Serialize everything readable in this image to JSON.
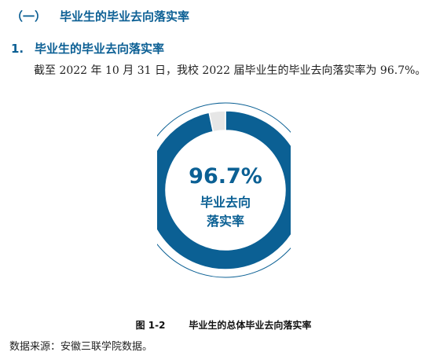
{
  "section": {
    "number": "（一）",
    "title": "毕业生的毕业去向落实率"
  },
  "subsection": {
    "number": "1.",
    "title": "毕业生的毕业去向落实率"
  },
  "paragraph": "截至 2022 年 10 月 31 日，我校 2022 届毕业生的毕业去向落实率为 96.7%。",
  "chart_data": {
    "type": "pie",
    "style": "donut",
    "categories": [
      "毕业去向落实率",
      ""
    ],
    "values": [
      96.7,
      3.3
    ],
    "colors": [
      "#0b6094",
      "#e6e6e6"
    ],
    "center_value": "96.7%",
    "center_label_lines": [
      "毕业去向",
      "落实率"
    ],
    "legend": "none"
  },
  "caption": {
    "number": "图 1-2",
    "title": "毕业生的总体毕业去向落实率"
  },
  "source": "数据来源：安徽三联学院数据。"
}
